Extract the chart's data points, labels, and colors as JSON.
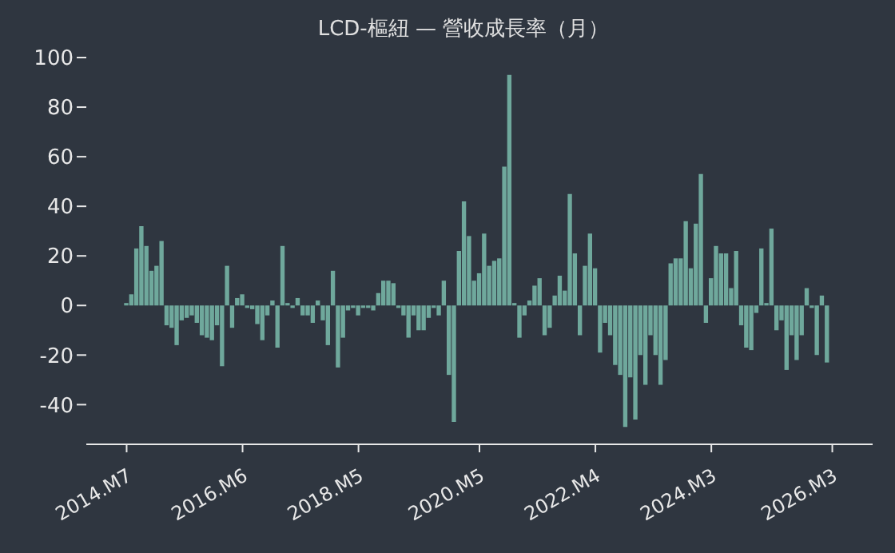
{
  "chart_data": {
    "type": "bar",
    "title": "LCD-樞紐 — 營收成長率（月）",
    "color": "#6fa89c",
    "x": [
      "2014-07",
      "2014-08",
      "2014-09",
      "2014-10",
      "2014-11",
      "2014-12",
      "2015-01",
      "2015-02",
      "2015-03",
      "2015-04",
      "2015-05",
      "2015-06",
      "2015-07",
      "2015-08",
      "2015-09",
      "2015-10",
      "2015-11",
      "2015-12",
      "2016-01",
      "2016-02",
      "2016-03",
      "2016-04",
      "2016-05",
      "2016-06",
      "2016-07",
      "2016-08",
      "2016-09",
      "2016-10",
      "2016-11",
      "2016-12",
      "2017-01",
      "2017-02",
      "2017-03",
      "2017-04",
      "2017-05",
      "2017-06",
      "2017-07",
      "2017-08",
      "2017-09",
      "2017-10",
      "2017-11",
      "2017-12",
      "2018-01",
      "2018-02",
      "2018-03",
      "2018-04",
      "2018-05",
      "2018-06",
      "2018-07",
      "2018-08",
      "2018-09",
      "2018-10",
      "2018-11",
      "2018-12",
      "2019-01",
      "2019-02",
      "2019-03",
      "2019-04",
      "2019-05",
      "2019-06",
      "2019-07",
      "2019-08",
      "2019-09",
      "2019-10",
      "2019-11",
      "2019-12",
      "2020-01",
      "2020-02",
      "2020-03",
      "2020-04",
      "2020-05",
      "2020-06",
      "2020-07",
      "2020-08",
      "2020-09",
      "2020-10",
      "2020-11",
      "2020-12",
      "2021-01",
      "2021-02",
      "2021-03",
      "2021-04",
      "2021-05",
      "2021-06",
      "2021-07",
      "2021-08",
      "2021-09",
      "2021-10",
      "2021-11",
      "2021-12",
      "2022-01",
      "2022-02",
      "2022-03",
      "2022-04",
      "2022-05",
      "2022-06",
      "2022-07",
      "2022-08",
      "2022-09",
      "2022-10",
      "2022-11",
      "2022-12",
      "2023-01",
      "2023-02",
      "2023-03",
      "2023-04",
      "2023-05",
      "2023-06",
      "2023-07",
      "2023-08",
      "2023-09",
      "2023-10",
      "2023-11",
      "2023-12",
      "2024-01",
      "2024-02",
      "2024-03",
      "2024-04",
      "2024-05",
      "2024-06",
      "2024-07",
      "2024-08",
      "2024-09",
      "2024-10",
      "2024-11",
      "2024-12",
      "2025-01",
      "2025-02",
      "2025-03",
      "2025-04",
      "2025-05",
      "2025-06",
      "2025-07",
      "2025-08",
      "2025-09",
      "2025-10",
      "2025-11",
      "2025-12",
      "2026-01",
      "2026-02"
    ],
    "values": [
      1,
      4.5,
      23,
      32,
      24,
      14,
      16,
      26,
      -8,
      -9,
      -16,
      -6,
      -5,
      -4,
      -7,
      -12,
      -13,
      -14,
      -8,
      -24.5,
      16,
      -9,
      3,
      4.5,
      -1,
      -1.5,
      -7.5,
      -14,
      -4,
      2,
      -17,
      24,
      1,
      -1,
      3,
      -4,
      -4,
      -7,
      2,
      -6,
      -16,
      14,
      -25,
      -13,
      -2,
      -1,
      -4,
      -1,
      -1,
      -2,
      5,
      10,
      10,
      9,
      -1,
      -4,
      -13,
      -4,
      -10,
      -10,
      -5,
      -1,
      -4,
      10,
      -28,
      -47,
      22,
      42,
      28,
      10,
      13,
      29,
      16,
      18,
      19,
      56,
      93,
      1,
      -13,
      -4,
      2,
      8,
      11,
      -12,
      -9,
      4,
      12,
      6,
      45,
      21,
      -12,
      16,
      29,
      15,
      -19,
      -7,
      -12,
      -24,
      -28,
      -49,
      -29,
      -46,
      -20,
      -32,
      -12,
      -20,
      -32,
      -22,
      17,
      19,
      19,
      34,
      15,
      33,
      53,
      -7,
      11,
      24,
      21,
      21,
      7,
      22,
      -8,
      -17,
      -18,
      -3,
      23,
      1,
      31,
      -10,
      -6,
      -26,
      -12,
      -22,
      -12,
      7,
      -1,
      -20,
      4,
      -23
    ],
    "xlim": [
      "2013-11",
      "2026-11"
    ],
    "xticks": [
      {
        "value": "2014-07",
        "label": "2014.M7"
      },
      {
        "value": "2016-06",
        "label": "2016.M6"
      },
      {
        "value": "2018-05",
        "label": "2018.M5"
      },
      {
        "value": "2020-05",
        "label": "2020.M5"
      },
      {
        "value": "2022-04",
        "label": "2022.M4"
      },
      {
        "value": "2024-03",
        "label": "2024.M3"
      },
      {
        "value": "2026-03",
        "label": "2026.M3"
      }
    ],
    "ylim": [
      -56,
      100
    ],
    "yticks": [
      -40,
      -20,
      0,
      20,
      40,
      60,
      80,
      100
    ]
  }
}
